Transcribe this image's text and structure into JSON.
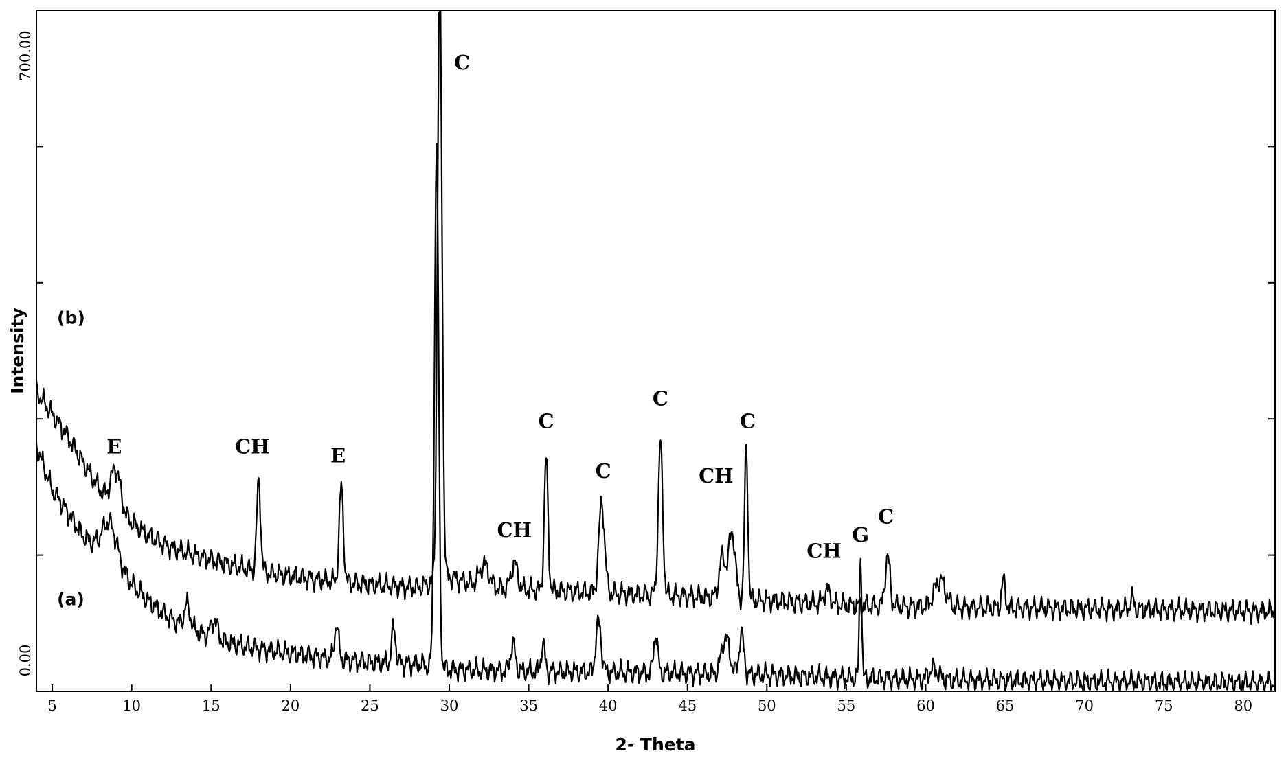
{
  "chart_data": {
    "type": "line",
    "title": "",
    "xlabel": "2- Theta",
    "ylabel": "Intensity",
    "xlim": [
      4,
      82
    ],
    "ylim": [
      0,
      750
    ],
    "x_ticks": [
      5,
      10,
      15,
      20,
      25,
      30,
      35,
      40,
      45,
      50,
      55,
      60,
      65,
      70,
      75,
      80
    ],
    "y_tick_labels": [
      {
        "value": 0,
        "text": "0.00"
      },
      {
        "value": 700,
        "text": "700.00"
      }
    ],
    "y_minor_ticks": [
      0,
      150,
      300,
      450,
      600,
      750
    ],
    "grid": false,
    "series": [
      {
        "name": "(a)",
        "baseline": [
          [
            4,
            270
          ],
          [
            5,
            222
          ],
          [
            6,
            196
          ],
          [
            7,
            170
          ],
          [
            8,
            155
          ],
          [
            9,
            140
          ],
          [
            10,
            118
          ],
          [
            11,
            100
          ],
          [
            12,
            86
          ],
          [
            13,
            74
          ],
          [
            14,
            66
          ],
          [
            15,
            60
          ],
          [
            16,
            54
          ],
          [
            17,
            50
          ],
          [
            18,
            47
          ],
          [
            20,
            42
          ],
          [
            22,
            37
          ],
          [
            25,
            32
          ],
          [
            28,
            30
          ],
          [
            30,
            24
          ],
          [
            35,
            22
          ],
          [
            40,
            21
          ],
          [
            45,
            20
          ],
          [
            50,
            18
          ],
          [
            55,
            15
          ],
          [
            60,
            13
          ],
          [
            65,
            12
          ],
          [
            70,
            11
          ],
          [
            75,
            10
          ],
          [
            82,
            9
          ]
        ],
        "peaks": [
          [
            8.6,
            40,
            0.45
          ],
          [
            13.5,
            25,
            0.2
          ],
          [
            15.2,
            20,
            0.2
          ],
          [
            22.9,
            40,
            0.12
          ],
          [
            26.5,
            40,
            0.12
          ],
          [
            29.2,
            570,
            0.13
          ],
          [
            34.0,
            30,
            0.15
          ],
          [
            35.9,
            30,
            0.12
          ],
          [
            39.4,
            55,
            0.17
          ],
          [
            43.0,
            45,
            0.12
          ],
          [
            47.4,
            40,
            0.25
          ],
          [
            48.4,
            45,
            0.15
          ],
          [
            55.9,
            143,
            0.07
          ],
          [
            60.5,
            12,
            0.3
          ]
        ]
      },
      {
        "name": "(b)",
        "baseline": [
          [
            4,
            330
          ],
          [
            5,
            305
          ],
          [
            6,
            280
          ],
          [
            7,
            250
          ],
          [
            8,
            222
          ],
          [
            9,
            200
          ],
          [
            10,
            186
          ],
          [
            11,
            172
          ],
          [
            12,
            162
          ],
          [
            13,
            155
          ],
          [
            14,
            150
          ],
          [
            15,
            145
          ],
          [
            16,
            140
          ],
          [
            18,
            132
          ],
          [
            20,
            127
          ],
          [
            22,
            122
          ],
          [
            25,
            118
          ],
          [
            28,
            114
          ],
          [
            30,
            126
          ],
          [
            32,
            115
          ],
          [
            35,
            112
          ],
          [
            40,
            108
          ],
          [
            45,
            105
          ],
          [
            50,
            100
          ],
          [
            55,
            95
          ],
          [
            60,
            93
          ],
          [
            65,
            92
          ],
          [
            70,
            91
          ],
          [
            75,
            90
          ],
          [
            82,
            88
          ]
        ],
        "peaks": [
          [
            9.0,
            45,
            0.3
          ],
          [
            18.0,
            100,
            0.12
          ],
          [
            23.2,
            105,
            0.13
          ],
          [
            29.4,
            660,
            0.14
          ],
          [
            32.2,
            25,
            0.3
          ],
          [
            34.1,
            28,
            0.2
          ],
          [
            36.1,
            145,
            0.12
          ],
          [
            39.6,
            100,
            0.18
          ],
          [
            43.3,
            168,
            0.14
          ],
          [
            47.2,
            45,
            0.2
          ],
          [
            47.8,
            75,
            0.2
          ],
          [
            48.7,
            170,
            0.1
          ],
          [
            53.8,
            15,
            0.2
          ],
          [
            57.6,
            55,
            0.15
          ],
          [
            60.9,
            30,
            0.35
          ],
          [
            64.9,
            30,
            0.12
          ],
          [
            73.0,
            12,
            0.12
          ]
        ]
      }
    ],
    "annotations": [
      {
        "text": "(b)",
        "x": 5.3,
        "y": 405,
        "kind": "series"
      },
      {
        "text": "(a)",
        "x": 5.3,
        "y": 95,
        "kind": "series"
      },
      {
        "text": "E",
        "x": 8.9,
        "y": 262,
        "kind": "peak"
      },
      {
        "text": "CH",
        "x": 17.6,
        "y": 262,
        "kind": "peak"
      },
      {
        "text": "E",
        "x": 23.0,
        "y": 252,
        "kind": "peak"
      },
      {
        "text": "C",
        "x": 30.8,
        "y": 685,
        "kind": "peak"
      },
      {
        "text": "CH",
        "x": 34.1,
        "y": 170,
        "kind": "peak"
      },
      {
        "text": "C",
        "x": 36.1,
        "y": 290,
        "kind": "peak"
      },
      {
        "text": "C",
        "x": 39.7,
        "y": 235,
        "kind": "peak"
      },
      {
        "text": "C",
        "x": 43.3,
        "y": 315,
        "kind": "peak"
      },
      {
        "text": "CH",
        "x": 46.8,
        "y": 230,
        "kind": "peak"
      },
      {
        "text": "C",
        "x": 48.8,
        "y": 290,
        "kind": "peak"
      },
      {
        "text": "CH",
        "x": 53.6,
        "y": 147,
        "kind": "peak"
      },
      {
        "text": "G",
        "x": 55.9,
        "y": 165,
        "kind": "peak"
      },
      {
        "text": "C",
        "x": 57.5,
        "y": 185,
        "kind": "peak"
      }
    ]
  }
}
